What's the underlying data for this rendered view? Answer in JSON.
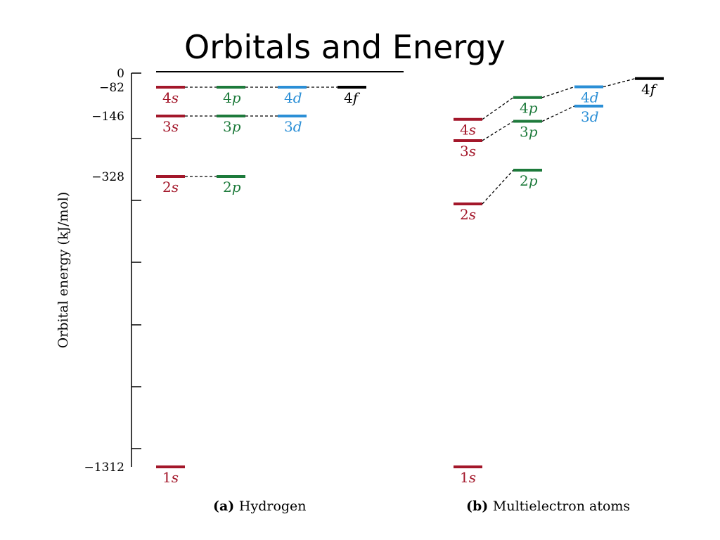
{
  "slide": {
    "title": "Orbitals and Energy"
  },
  "axis": {
    "ylabel": "Orbital energy (kJ/mol)",
    "tick_labels": [
      "0",
      "−82",
      "−146",
      "−328",
      "−1312"
    ]
  },
  "colors": {
    "s": "#a3172a",
    "p": "#1d7a3b",
    "d": "#2b8fd6",
    "f": "#000000"
  },
  "panels": [
    {
      "caption_bold": "(a)",
      "caption_text": "Hydrogen",
      "levels": [
        {
          "n": "4",
          "l": "s",
          "energy": -82
        },
        {
          "n": "4",
          "l": "p",
          "energy": -82
        },
        {
          "n": "4",
          "l": "d",
          "energy": -82
        },
        {
          "n": "4",
          "l": "f",
          "energy": -82
        },
        {
          "n": "3",
          "l": "s",
          "energy": -146
        },
        {
          "n": "3",
          "l": "p",
          "energy": -146
        },
        {
          "n": "3",
          "l": "d",
          "energy": -146
        },
        {
          "n": "2",
          "l": "s",
          "energy": -328
        },
        {
          "n": "2",
          "l": "p",
          "energy": -328
        },
        {
          "n": "1",
          "l": "s",
          "energy": -1312
        }
      ]
    },
    {
      "caption_bold": "(b)",
      "caption_text": "Multielectron atoms",
      "levels": [
        {
          "n": "4",
          "l": "s",
          "energy": -156
        },
        {
          "n": "4",
          "l": "p",
          "energy": -105
        },
        {
          "n": "4",
          "l": "d",
          "energy": -80
        },
        {
          "n": "4",
          "l": "f",
          "energy": -32
        },
        {
          "n": "3",
          "l": "s",
          "energy": -220
        },
        {
          "n": "3",
          "l": "p",
          "energy": -162
        },
        {
          "n": "3",
          "l": "d",
          "energy": -124
        },
        {
          "n": "2",
          "l": "s",
          "energy": -421
        },
        {
          "n": "2",
          "l": "p",
          "energy": -309
        },
        {
          "n": "1",
          "l": "s",
          "energy": -1312
        }
      ]
    }
  ]
}
